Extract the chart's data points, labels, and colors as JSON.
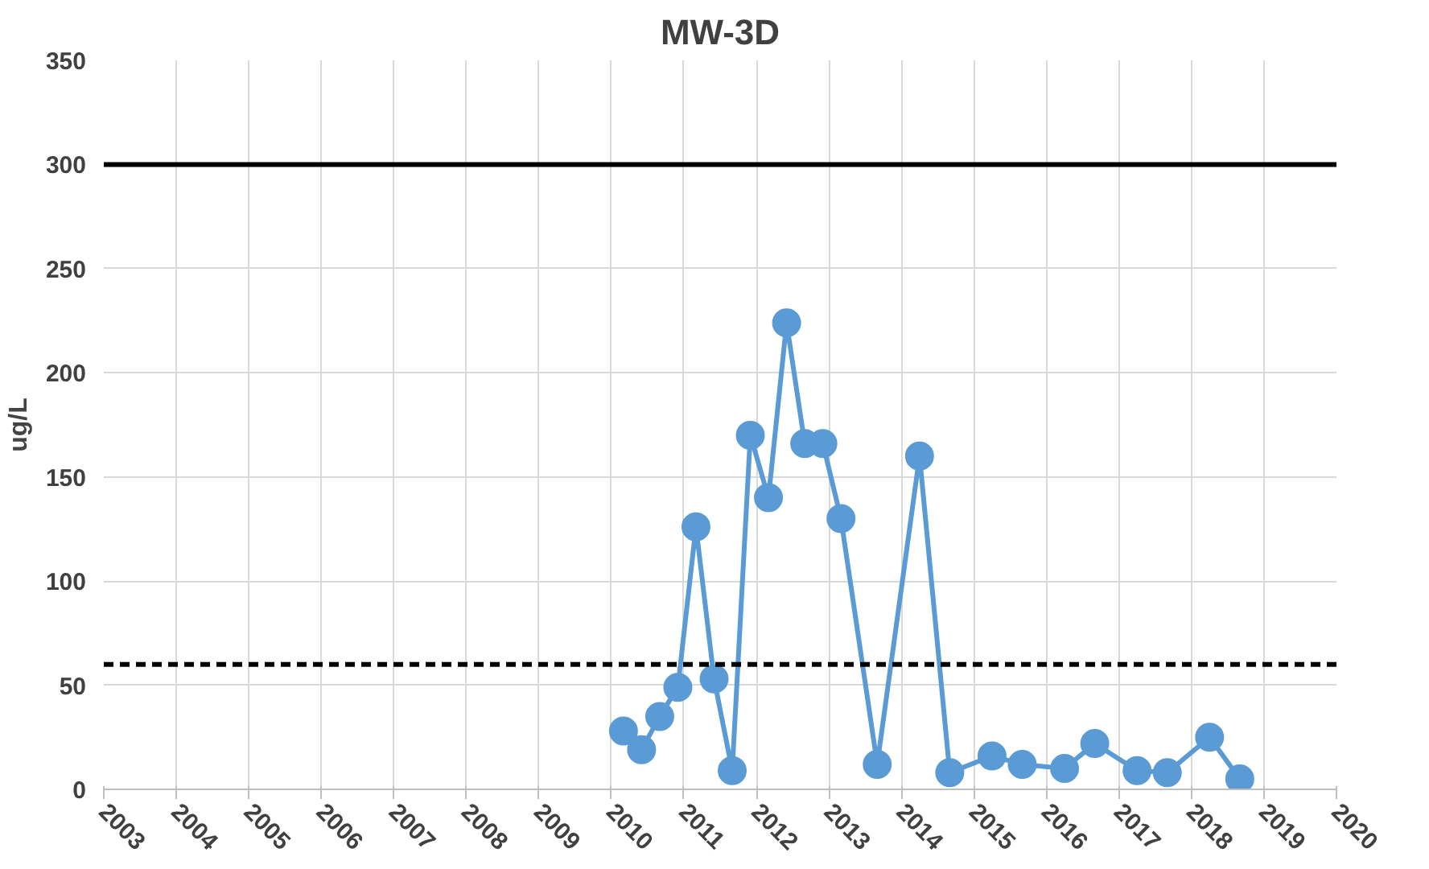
{
  "chart_data": {
    "type": "line",
    "title": "MW-3D",
    "ylabel": "ug/L",
    "x": [
      "2010-03",
      "2010-06",
      "2010-09",
      "2010-12",
      "2011-03",
      "2011-06",
      "2011-09",
      "2011-12",
      "2012-03",
      "2012-06",
      "2012-09",
      "2012-12",
      "2013-03",
      "2013-09",
      "2014-04",
      "2014-09",
      "2015-04",
      "2015-09",
      "2016-04",
      "2016-09",
      "2017-04",
      "2017-09",
      "2018-04",
      "2018-09"
    ],
    "series": [
      {
        "color": "#5b9bd5",
        "values": [
          28,
          19,
          35,
          49,
          126,
          53,
          9,
          170,
          140,
          224,
          166,
          166,
          130,
          12,
          160,
          8,
          16,
          12,
          10,
          22,
          9,
          8,
          25,
          5
        ]
      }
    ],
    "xlim": [
      "2003",
      "2020"
    ],
    "xticks": [
      "2003",
      "2004",
      "2005",
      "2006",
      "2007",
      "2008",
      "2009",
      "2010",
      "2011",
      "2012",
      "2013",
      "2014",
      "2015",
      "2016",
      "2017",
      "2018",
      "2019",
      "2020"
    ],
    "ylim": [
      0,
      350
    ],
    "yticks": [
      0,
      50,
      100,
      150,
      200,
      250,
      300,
      350
    ],
    "ref_lines": [
      {
        "axis": "y",
        "value": 300,
        "color": "#000000",
        "line_style": "solid"
      },
      {
        "axis": "y",
        "value": 60,
        "color": "#000000",
        "line_style": "dashed"
      }
    ],
    "grid": true,
    "marker": "circle",
    "line_style": "solid"
  }
}
